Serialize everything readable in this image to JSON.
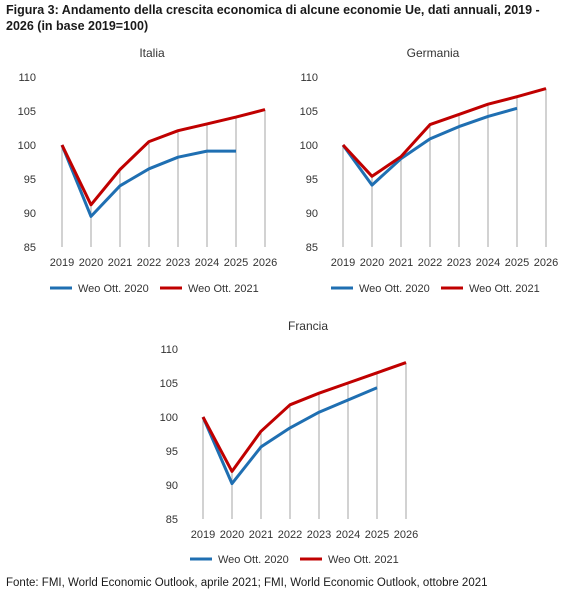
{
  "figure": {
    "title": "Figura 3: Andamento della crescita economica di alcune economie Ue, dati annuali, 2019 - 2026 (in base 2019=100)",
    "source": "Fonte: FMI, World Economic Outlook, aprile 2021; FMI, World Economic Outlook, ottobre 2021"
  },
  "colors": {
    "weo2020": "#1f6fb2",
    "weo2021": "#c00000",
    "vline": "#a6a6a6"
  },
  "chart_data": [
    {
      "type": "line",
      "title": "Italia",
      "categories": [
        "2019",
        "2020",
        "2021",
        "2022",
        "2023",
        "2024",
        "2025",
        "2026"
      ],
      "ylim": [
        85,
        110
      ],
      "yticks": [
        "85",
        "90",
        "95",
        "100",
        "105",
        "110"
      ],
      "grid": false,
      "legend": "bottom",
      "series": [
        {
          "name": "Weo Ott. 2020",
          "values": [
            100,
            89.5,
            94,
            96.5,
            98.2,
            99.1,
            99.1,
            null
          ]
        },
        {
          "name": "Weo Ott. 2021",
          "values": [
            100,
            91.2,
            96.4,
            100.5,
            102.1,
            103.1,
            104.1,
            105.2
          ]
        }
      ]
    },
    {
      "type": "line",
      "title": "Germania",
      "categories": [
        "2019",
        "2020",
        "2021",
        "2022",
        "2023",
        "2024",
        "2025",
        "2026"
      ],
      "ylim": [
        85,
        110
      ],
      "yticks": [
        "85",
        "90",
        "95",
        "100",
        "105",
        "110"
      ],
      "grid": false,
      "legend": "bottom",
      "series": [
        {
          "name": "Weo Ott. 2020",
          "values": [
            100,
            94.1,
            98,
            100.9,
            102.7,
            104.2,
            105.4,
            null
          ]
        },
        {
          "name": "Weo Ott. 2021",
          "values": [
            100,
            95.4,
            98.3,
            103,
            104.5,
            106,
            107.1,
            108.3
          ]
        }
      ]
    },
    {
      "type": "line",
      "title": "Francia",
      "categories": [
        "2019",
        "2020",
        "2021",
        "2022",
        "2023",
        "2024",
        "2025",
        "2026"
      ],
      "ylim": [
        85,
        110
      ],
      "yticks": [
        "85",
        "90",
        "95",
        "100",
        "105",
        "110"
      ],
      "grid": false,
      "legend": "bottom",
      "series": [
        {
          "name": "Weo Ott. 2020",
          "values": [
            100,
            90.2,
            95.6,
            98.4,
            100.7,
            102.5,
            104.3,
            null
          ]
        },
        {
          "name": "Weo Ott. 2021",
          "values": [
            100,
            92,
            97.9,
            101.8,
            103.5,
            105,
            106.5,
            108
          ]
        }
      ]
    }
  ]
}
